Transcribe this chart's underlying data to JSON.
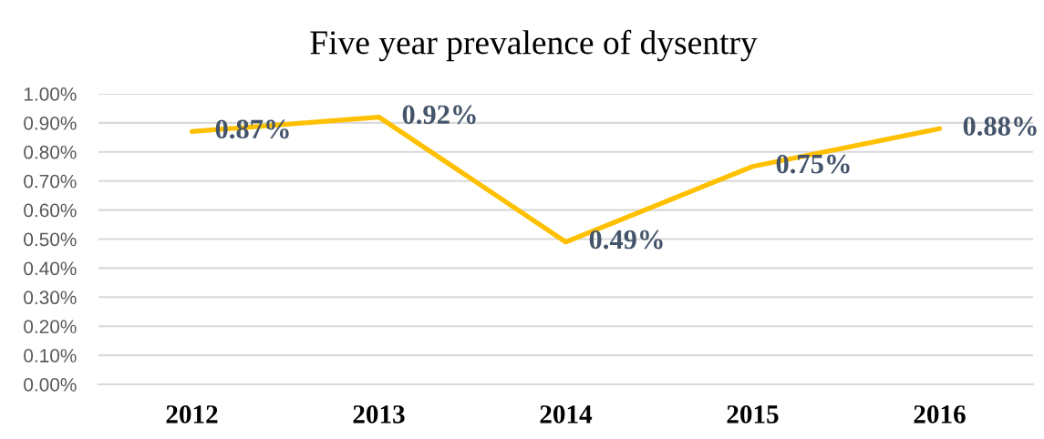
{
  "chart_data": {
    "type": "line",
    "title": "Five year prevalence of dysentry",
    "categories": [
      "2012",
      "2013",
      "2014",
      "2015",
      "2016"
    ],
    "series": [
      {
        "color": "#ffc000",
        "values": [
          0.87,
          0.92,
          0.49,
          0.75,
          0.88
        ],
        "value_labels": [
          "0.87%",
          "0.92%",
          "0.49%",
          "0.75%",
          "0.88%"
        ]
      }
    ],
    "ylim": [
      0,
      1
    ],
    "yticks": [
      {
        "value": 0,
        "label": "0.00%"
      },
      {
        "value": 0.1,
        "label": "0.10%"
      },
      {
        "value": 0.2,
        "label": "0.20%"
      },
      {
        "value": 0.3,
        "label": "0.30%"
      },
      {
        "value": 0.4,
        "label": "0.40%"
      },
      {
        "value": 0.5,
        "label": "0.50%"
      },
      {
        "value": 0.6,
        "label": "0.60%"
      },
      {
        "value": 0.7,
        "label": "0.70%"
      },
      {
        "value": 0.8,
        "label": "0.80%"
      },
      {
        "value": 0.9,
        "label": "0.90%"
      },
      {
        "value": 1.0,
        "label": "1.00%"
      }
    ],
    "grid": "y",
    "line_style": "solid"
  }
}
